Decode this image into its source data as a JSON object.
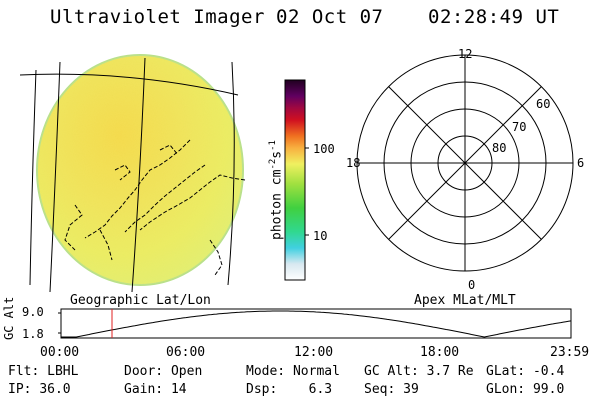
{
  "header": {
    "instrument": "Ultraviolet Imager",
    "date": "02 Oct 07",
    "time": "02:28:49 UT"
  },
  "colorbar": {
    "unit_label": "photon cm",
    "unit_exp1": "-2",
    "unit_s": "s",
    "unit_exp2": "-1",
    "tick_labels": [
      "100",
      "10"
    ]
  },
  "panels": {
    "geo_label": "Geographic Lat/Lon",
    "apex_label": "Apex MLat/MLT"
  },
  "polar": {
    "mlt_labels": {
      "top": "12",
      "bottom": "0",
      "left": "18",
      "right": "6"
    },
    "lat_labels": [
      "60",
      "70",
      "80"
    ]
  },
  "altitude_plot": {
    "ylabel": "GC Alt",
    "y_ticks": [
      "9.0",
      "1.8"
    ],
    "x_ticks": [
      "00:00",
      "06:00",
      "12:00",
      "18:00",
      "23:59"
    ],
    "y_range": [
      1.8,
      9.0
    ],
    "current_time_fraction": 0.1
  },
  "status": {
    "row1": [
      {
        "label": "Flt:",
        "value": "LBHL"
      },
      {
        "label": "Door:",
        "value": "Open"
      },
      {
        "label": "Mode:",
        "value": "Normal"
      },
      {
        "label": "GC Alt:",
        "value": "3.7 Re"
      },
      {
        "label": "GLat:",
        "value": "-0.4"
      }
    ],
    "row2": [
      {
        "label": "IP:",
        "value": "36.0"
      },
      {
        "label": "Gain:",
        "value": "14"
      },
      {
        "label": "Dsp:",
        "value": "6.3"
      },
      {
        "label": "Seq:",
        "value": "39"
      },
      {
        "label": "GLon:",
        "value": "99.0"
      }
    ]
  }
}
